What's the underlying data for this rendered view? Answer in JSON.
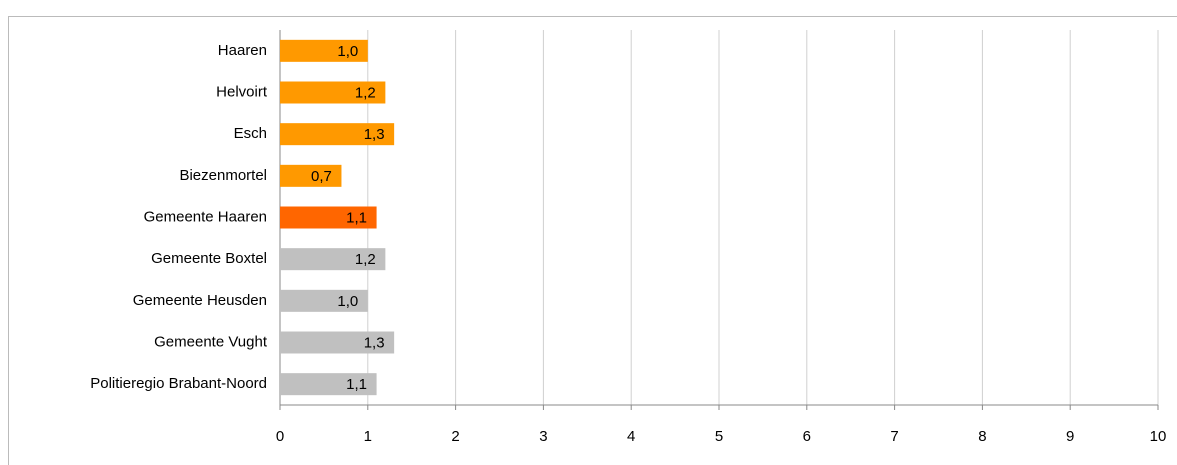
{
  "chart_data": {
    "type": "hbar",
    "categories": [
      "Haaren",
      "Helvoirt",
      "Esch",
      "Biezenmortel",
      "Gemeente Haaren",
      "Gemeente Boxtel",
      "Gemeente Heusden",
      "Gemeente Vught",
      "Politieregio Brabant-Noord"
    ],
    "values": [
      1.0,
      1.2,
      1.3,
      0.7,
      1.1,
      1.2,
      1.0,
      1.3,
      1.1
    ],
    "value_labels": [
      "1,0",
      "1,2",
      "1,3",
      "0,7",
      "1,1",
      "1,2",
      "1,0",
      "1,3",
      "1,1"
    ],
    "colors": [
      "#ff9900",
      "#ff9900",
      "#ff9900",
      "#ff9900",
      "#ff6600",
      "#c0c0c0",
      "#c0c0c0",
      "#c0c0c0",
      "#c0c0c0"
    ],
    "xlim": [
      0,
      10
    ],
    "xticks": [
      0,
      1,
      2,
      3,
      4,
      5,
      6,
      7,
      8,
      9,
      10
    ],
    "grid": true
  }
}
